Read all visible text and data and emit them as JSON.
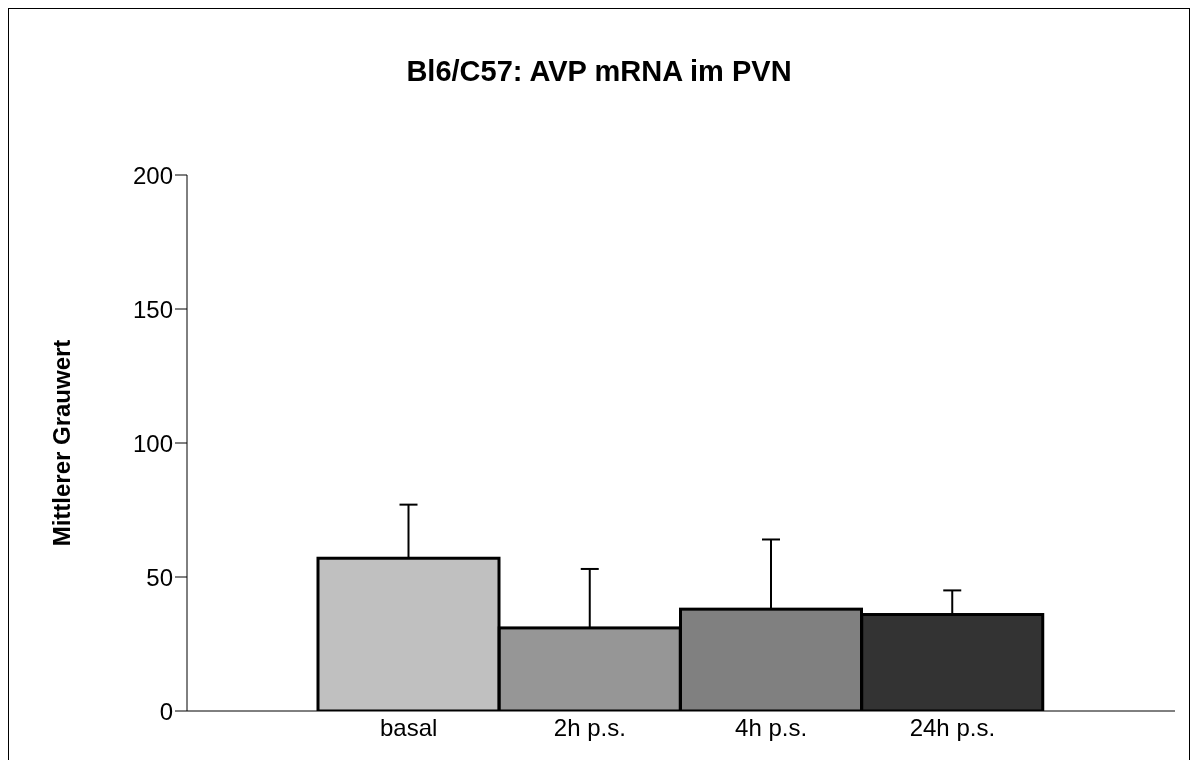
{
  "chart_data": {
    "type": "bar",
    "title": "Bl6/C57: AVP mRNA im PVN",
    "ylabel": "Mittlerer Grauwert",
    "categories": [
      "basal",
      "2h p.s.",
      "4h p.s.",
      "24h p.s."
    ],
    "values": [
      57,
      31,
      38,
      36
    ],
    "colors": [
      "#c0c0c0",
      "#969696",
      "#808080",
      "#333333"
    ],
    "errors": [
      [
        57,
        77
      ],
      [
        31,
        53
      ],
      [
        38,
        64
      ],
      [
        36,
        45
      ]
    ],
    "ylim": [
      0,
      200
    ],
    "yticks": [
      0,
      50,
      100,
      150,
      200
    ]
  }
}
